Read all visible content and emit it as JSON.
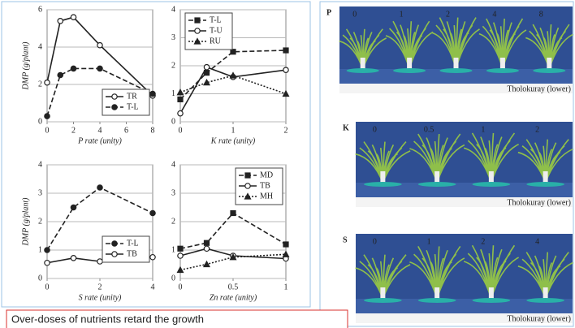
{
  "chart_data": [
    {
      "type": "line",
      "x_label": "P rate (unity)",
      "y_label": "DMP (g/plant)",
      "x": [
        0,
        1,
        2,
        4,
        8
      ],
      "xlim": [
        0,
        8
      ],
      "xticks": [
        0,
        2,
        4,
        6,
        8
      ],
      "ylim": [
        0,
        6
      ],
      "yticks": [
        0,
        2,
        4,
        6
      ],
      "grid": true,
      "legend": "lower right",
      "series": [
        {
          "name": "TR",
          "color": "#222222",
          "marker": "open-circle",
          "line_style": "solid",
          "values": [
            2.1,
            5.4,
            5.6,
            4.1,
            1.4
          ]
        },
        {
          "name": "T-L",
          "color": "#222222",
          "marker": "filled-circle",
          "line_style": "dashed",
          "values": [
            0.3,
            2.5,
            2.85,
            2.85,
            1.5
          ]
        }
      ]
    },
    {
      "type": "line",
      "x_label": "K rate (unity)",
      "x": [
        0,
        0.5,
        1,
        2
      ],
      "xlim": [
        0,
        2
      ],
      "xticks": [
        0,
        1,
        2
      ],
      "ylim": [
        0,
        4
      ],
      "yticks": [
        0,
        1,
        2,
        3,
        4
      ],
      "grid": true,
      "legend": "upper left",
      "series": [
        {
          "name": "T-L",
          "color": "#222222",
          "marker": "square",
          "line_style": "dashed",
          "values": [
            0.8,
            1.75,
            2.5,
            2.55
          ]
        },
        {
          "name": "T-U",
          "color": "#222222",
          "marker": "open-circle",
          "line_style": "solid",
          "values": [
            0.3,
            1.95,
            1.6,
            1.85
          ]
        },
        {
          "name": "RU",
          "color": "#222222",
          "marker": "triangle",
          "line_style": "dotted",
          "values": [
            1.05,
            1.4,
            1.65,
            1.0
          ]
        }
      ]
    },
    {
      "type": "line",
      "x_label": "S rate (unity)",
      "y_label": "DMP (g/plant)",
      "x": [
        0,
        1,
        2,
        4
      ],
      "xlim": [
        0,
        4
      ],
      "xticks": [
        0,
        2,
        4
      ],
      "ylim": [
        0,
        4
      ],
      "yticks": [
        0,
        1,
        2,
        3,
        4
      ],
      "grid": true,
      "legend": "center right",
      "series": [
        {
          "name": "T-L",
          "color": "#222222",
          "marker": "filled-circle",
          "line_style": "dashed",
          "values": [
            1.0,
            2.5,
            3.2,
            2.3
          ]
        },
        {
          "name": "TB",
          "color": "#222222",
          "marker": "open-circle",
          "line_style": "solid",
          "values": [
            0.55,
            0.72,
            0.6,
            0.75
          ]
        }
      ]
    },
    {
      "type": "line",
      "x_label": "Zn rate (unity)",
      "x": [
        0,
        0.25,
        0.5,
        1
      ],
      "xlim": [
        0,
        1
      ],
      "xticks": [
        0,
        0.5,
        1
      ],
      "ylim": [
        0,
        4
      ],
      "yticks": [
        0,
        1,
        2,
        3,
        4
      ],
      "grid": true,
      "legend": "upper right",
      "series": [
        {
          "name": "MD",
          "color": "#222222",
          "marker": "square",
          "line_style": "dashed",
          "values": [
            1.05,
            1.25,
            2.3,
            1.2
          ]
        },
        {
          "name": "TB",
          "color": "#222222",
          "marker": "open-circle",
          "line_style": "solid",
          "values": [
            0.8,
            1.05,
            0.8,
            0.7
          ]
        },
        {
          "name": "MH",
          "color": "#222222",
          "marker": "triangle",
          "line_style": "dotted",
          "values": [
            0.3,
            0.5,
            0.75,
            0.85
          ]
        }
      ]
    }
  ],
  "photos": [
    {
      "label": "P",
      "rates": [
        "0",
        "1",
        "2",
        "4",
        "8"
      ],
      "caption": "Tholokuray (lower)"
    },
    {
      "label": "K",
      "rates": [
        "0",
        "0.5",
        "1",
        "2"
      ],
      "caption": "Tholokuray (lower)"
    },
    {
      "label": "S",
      "rates": [
        "0",
        "1",
        "2",
        "4"
      ],
      "caption": "Tholokuray (lower)"
    }
  ],
  "note": "Over-doses of nutrients retard the growth"
}
